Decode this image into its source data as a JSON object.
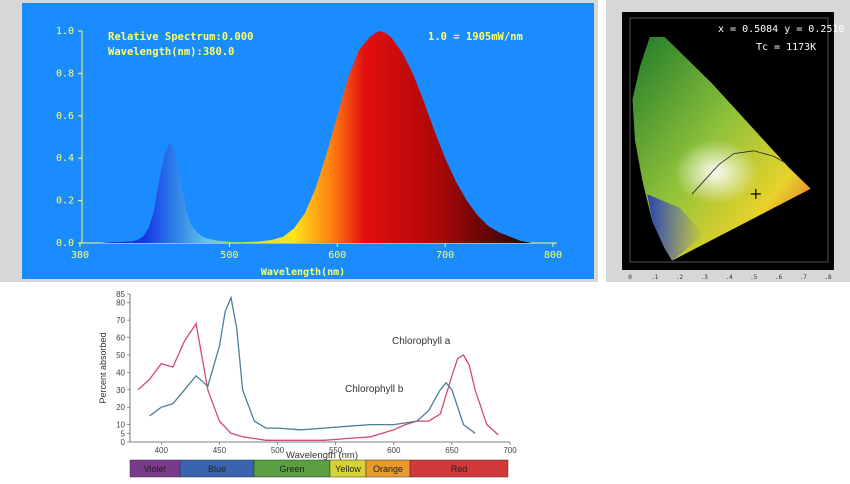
{
  "spectrum_panel": {
    "readout_relative": "Relative Spectrum:0.000",
    "readout_wavelength": "Wavelength(nm):380.0",
    "scale_note": "1.0 = 1905mW/nm"
  },
  "cie_panel": {
    "readout_xy": "x = 0.5084 y = 0.2510",
    "readout_tc": "Tc = 1173K"
  },
  "colors": {
    "spectrum_background": "#1a8cff",
    "spectrum_readout": "#ffff66",
    "chlorophyll_a": "#d44a72",
    "chlorophyll_b": "#4a7f9a"
  },
  "chart_data": [
    {
      "type": "area",
      "title": "",
      "xlabel": "Wavelength(nm)",
      "ylabel": "",
      "xlim": [
        380,
        800
      ],
      "ylim": [
        0,
        1.0
      ],
      "x_ticks": [
        "380",
        "500",
        "600",
        "700",
        "800"
      ],
      "y_ticks": [
        "0.0",
        "0.2",
        "0.4",
        "0.6",
        "0.8",
        "1.0"
      ],
      "grid": false,
      "series": [
        {
          "name": "",
          "x": [
            380,
            390,
            400,
            410,
            415,
            420,
            425,
            430,
            435,
            440,
            445,
            450,
            455,
            460,
            465,
            470,
            475,
            480,
            490,
            500,
            510,
            520,
            530,
            540,
            550,
            560,
            570,
            580,
            590,
            600,
            610,
            620,
            630,
            635,
            640,
            645,
            650,
            660,
            670,
            680,
            690,
            700,
            710,
            720,
            730,
            740,
            750,
            760,
            770,
            780
          ],
          "y": [
            0.0,
            0.003,
            0.005,
            0.008,
            0.015,
            0.03,
            0.07,
            0.15,
            0.3,
            0.42,
            0.48,
            0.42,
            0.28,
            0.15,
            0.08,
            0.05,
            0.03,
            0.02,
            0.01,
            0.005,
            0.004,
            0.005,
            0.008,
            0.015,
            0.03,
            0.07,
            0.14,
            0.26,
            0.42,
            0.6,
            0.78,
            0.91,
            0.97,
            0.99,
            1.0,
            0.99,
            0.97,
            0.9,
            0.8,
            0.67,
            0.53,
            0.4,
            0.29,
            0.2,
            0.13,
            0.08,
            0.05,
            0.03,
            0.01,
            0.0
          ]
        }
      ]
    },
    {
      "type": "scatter",
      "title": "",
      "xlabel": "",
      "ylabel": "",
      "xlim": [
        0,
        0.8
      ],
      "ylim": [
        0,
        0.9
      ],
      "x_ticks": [
        "0",
        ".1",
        ".2",
        ".3",
        ".4",
        ".5",
        ".6",
        ".7",
        ".8"
      ],
      "series": [
        {
          "name": "",
          "x": [
            0.5084
          ],
          "y": [
            0.251
          ]
        }
      ]
    },
    {
      "type": "line",
      "title": "",
      "xlabel": "Wavelength (nm)",
      "ylabel": "Percent absorbed",
      "xlim": [
        380,
        700
      ],
      "ylim": [
        0,
        85
      ],
      "x_ticks": [
        "400",
        "450",
        "500",
        "550",
        "600",
        "650",
        "700"
      ],
      "y_ticks": [
        "0",
        "5",
        "10",
        "20",
        "30",
        "40",
        "50",
        "60",
        "70",
        "80",
        "85"
      ],
      "series": [
        {
          "name": "Chlorophyll a",
          "x": [
            380,
            390,
            400,
            410,
            420,
            430,
            440,
            450,
            460,
            470,
            480,
            490,
            500,
            520,
            540,
            560,
            580,
            600,
            610,
            620,
            630,
            640,
            650,
            655,
            660,
            665,
            670,
            680,
            690
          ],
          "y": [
            30,
            36,
            45,
            43,
            58,
            68,
            30,
            12,
            5,
            3,
            2,
            1,
            1,
            1,
            1,
            2,
            3,
            7,
            10,
            12,
            12,
            16,
            38,
            48,
            50,
            44,
            30,
            10,
            4
          ],
          "name_label": "Chlorophyll a"
        },
        {
          "name": "Chlorophyll b",
          "x": [
            390,
            400,
            410,
            420,
            430,
            440,
            450,
            455,
            460,
            465,
            470,
            480,
            490,
            500,
            520,
            540,
            560,
            580,
            600,
            620,
            630,
            640,
            645,
            650,
            660,
            670
          ],
          "y": [
            15,
            20,
            22,
            30,
            38,
            32,
            55,
            75,
            83,
            65,
            30,
            12,
            8,
            8,
            7,
            8,
            9,
            10,
            10,
            12,
            18,
            30,
            34,
            30,
            10,
            5
          ],
          "name_label": "Chlorophyll b"
        }
      ]
    }
  ],
  "spectrum_bar": {
    "segments": [
      {
        "label": "Violet",
        "color": "#7a3a8c"
      },
      {
        "label": "Blue",
        "color": "#3a63b0"
      },
      {
        "label": "Green",
        "color": "#5aa043"
      },
      {
        "label": "Yellow",
        "color": "#d6d336"
      },
      {
        "label": "Orange",
        "color": "#e89a2c"
      },
      {
        "label": "Red",
        "color": "#d23a3a"
      }
    ]
  }
}
